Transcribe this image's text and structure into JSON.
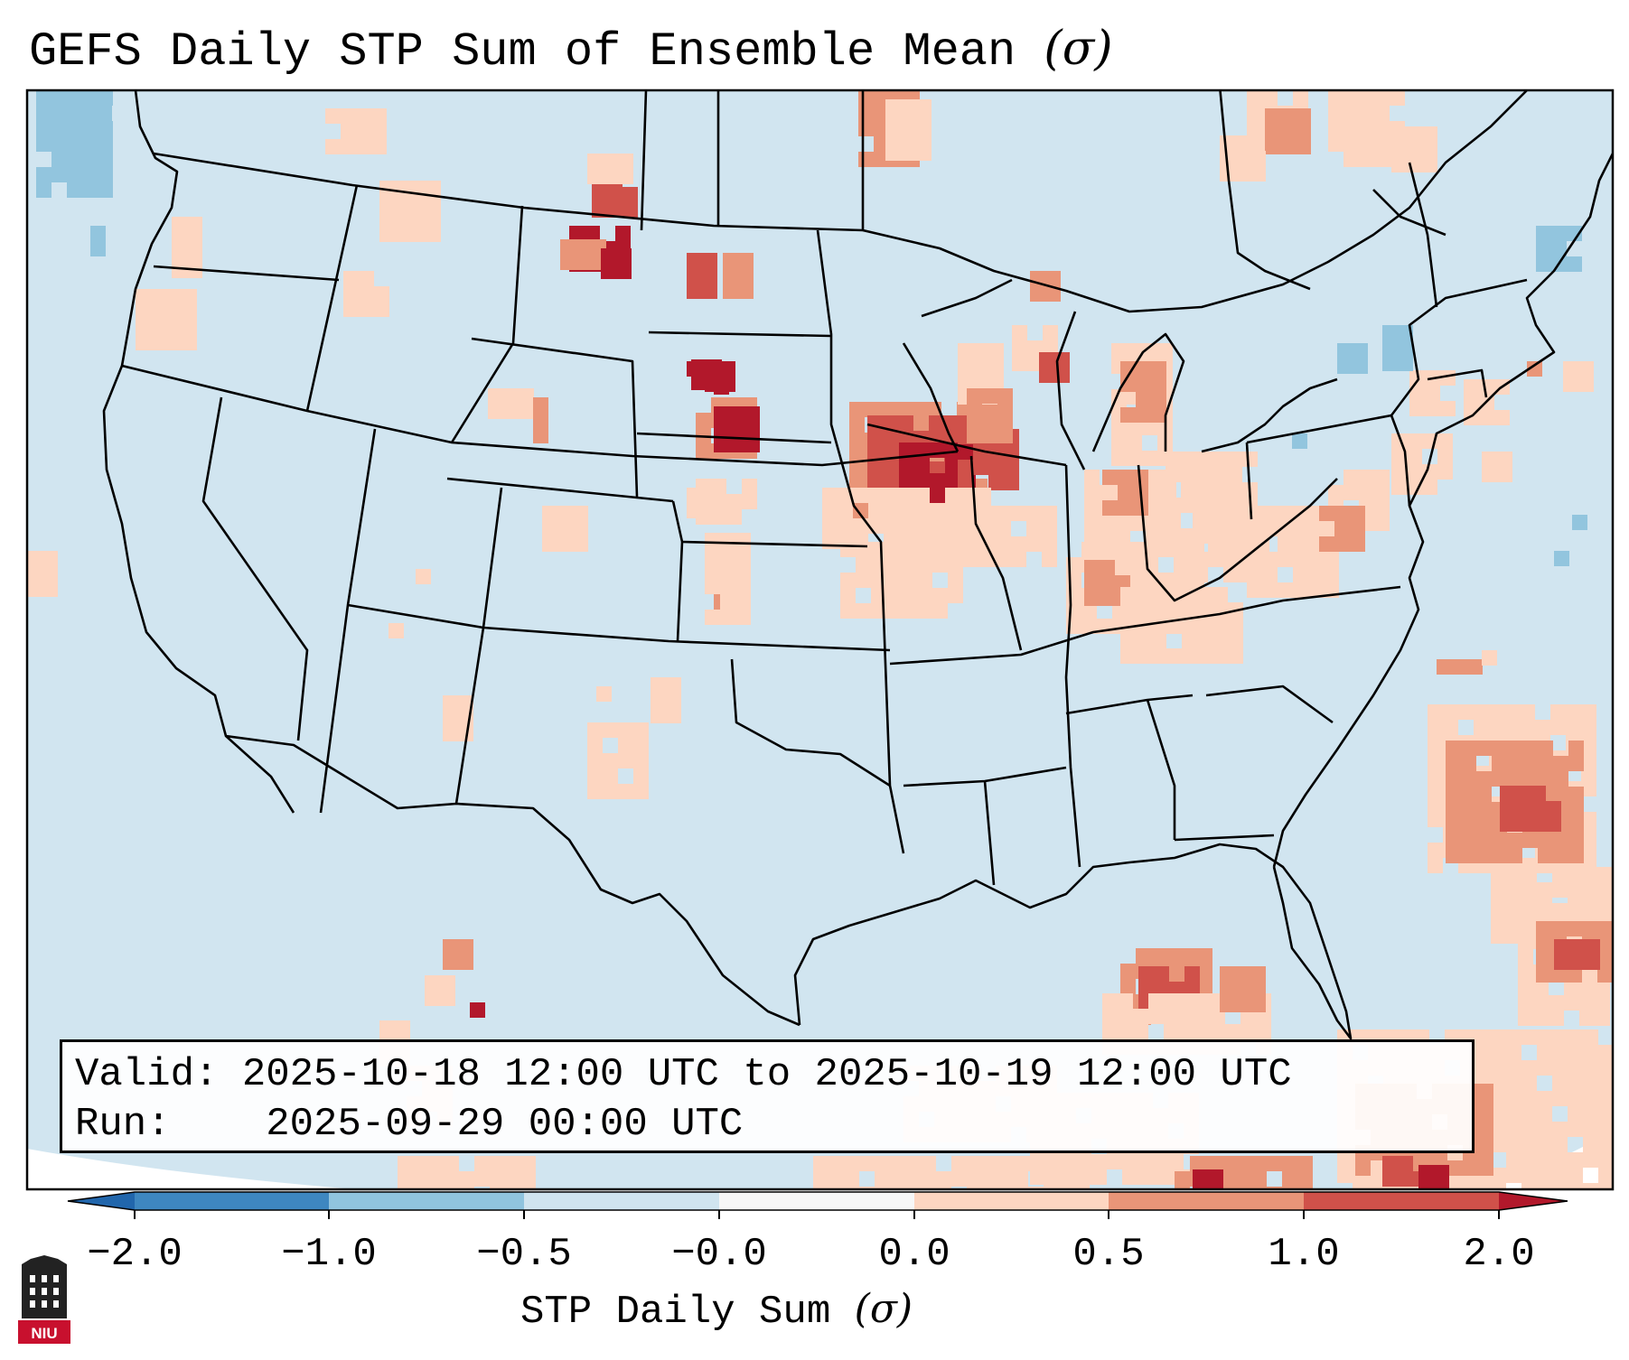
{
  "title": "GEFS Daily STP Sum of Ensemble Mean",
  "title_unit": "(σ)",
  "info": {
    "valid_label": "Valid:",
    "valid_value": "2025-10-18 12:00 UTC to 2025-10-19 12:00 UTC",
    "run_label": "Run:",
    "run_value": "2025-09-29 00:00 UTC"
  },
  "colorbar": {
    "label": "STP Daily Sum",
    "label_unit": "(σ)",
    "ticks": [
      "−2.0",
      "−1.0",
      "−0.5",
      "−0.0",
      "0.0",
      "0.5",
      "1.0",
      "2.0"
    ],
    "colors": [
      "#3e87c0",
      "#90c4de",
      "#d0e4ef",
      "#f7f7f7",
      "#fdd6c1",
      "#e99578",
      "#d0514a"
    ],
    "extend_low_color": "#2166ac",
    "extend_high_color": "#b2182b"
  },
  "map_colors": {
    "background": "#d1e5f0",
    "light_positive": "#fdd6c1",
    "mid_positive": "#e99578",
    "strong_positive": "#d0514a",
    "max_positive": "#b2182b",
    "light_negative": "#92c5de",
    "border": "#000000"
  },
  "logo_text": "NIU"
}
